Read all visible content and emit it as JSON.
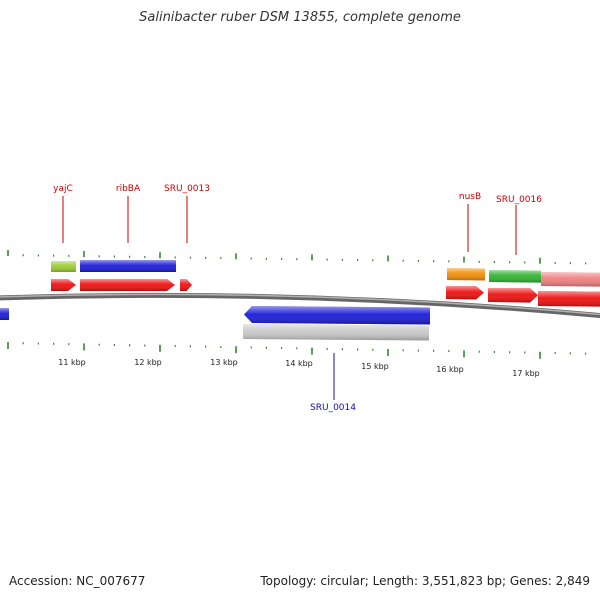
{
  "header": {
    "title": "Salinibacter ruber DSM 13855, complete genome"
  },
  "colors": {
    "backbone": "#808080",
    "tick_green": "#2e8b2e",
    "gene_label_forward": "#cc0000",
    "gene_label_reverse": "#1010aa",
    "cog_blue": "#1c1cd6",
    "cog_lime": "#9acd32",
    "cog_orange": "#f0900a",
    "cog_green": "#32b432",
    "cog_pink": "#f08080",
    "cog_gray": "#c8c8c8",
    "cds_red": "#ee1111"
  },
  "axis": {
    "tick_labels": [
      "11 kbp",
      "12 kbp",
      "13 kbp",
      "14 kbp",
      "15 kbp",
      "16 kbp",
      "17 kbp"
    ]
  },
  "gene_labels": {
    "forward": [
      "yajC",
      "ribBA",
      "SRU_0013",
      "nusB",
      "SRU_0016"
    ],
    "reverse": [
      "SRU_0014"
    ]
  },
  "footer": {
    "accession": "Accession: NC_007677",
    "stats": "Topology: circular; Length: 3,551,823 bp; Genes: 2,849"
  }
}
